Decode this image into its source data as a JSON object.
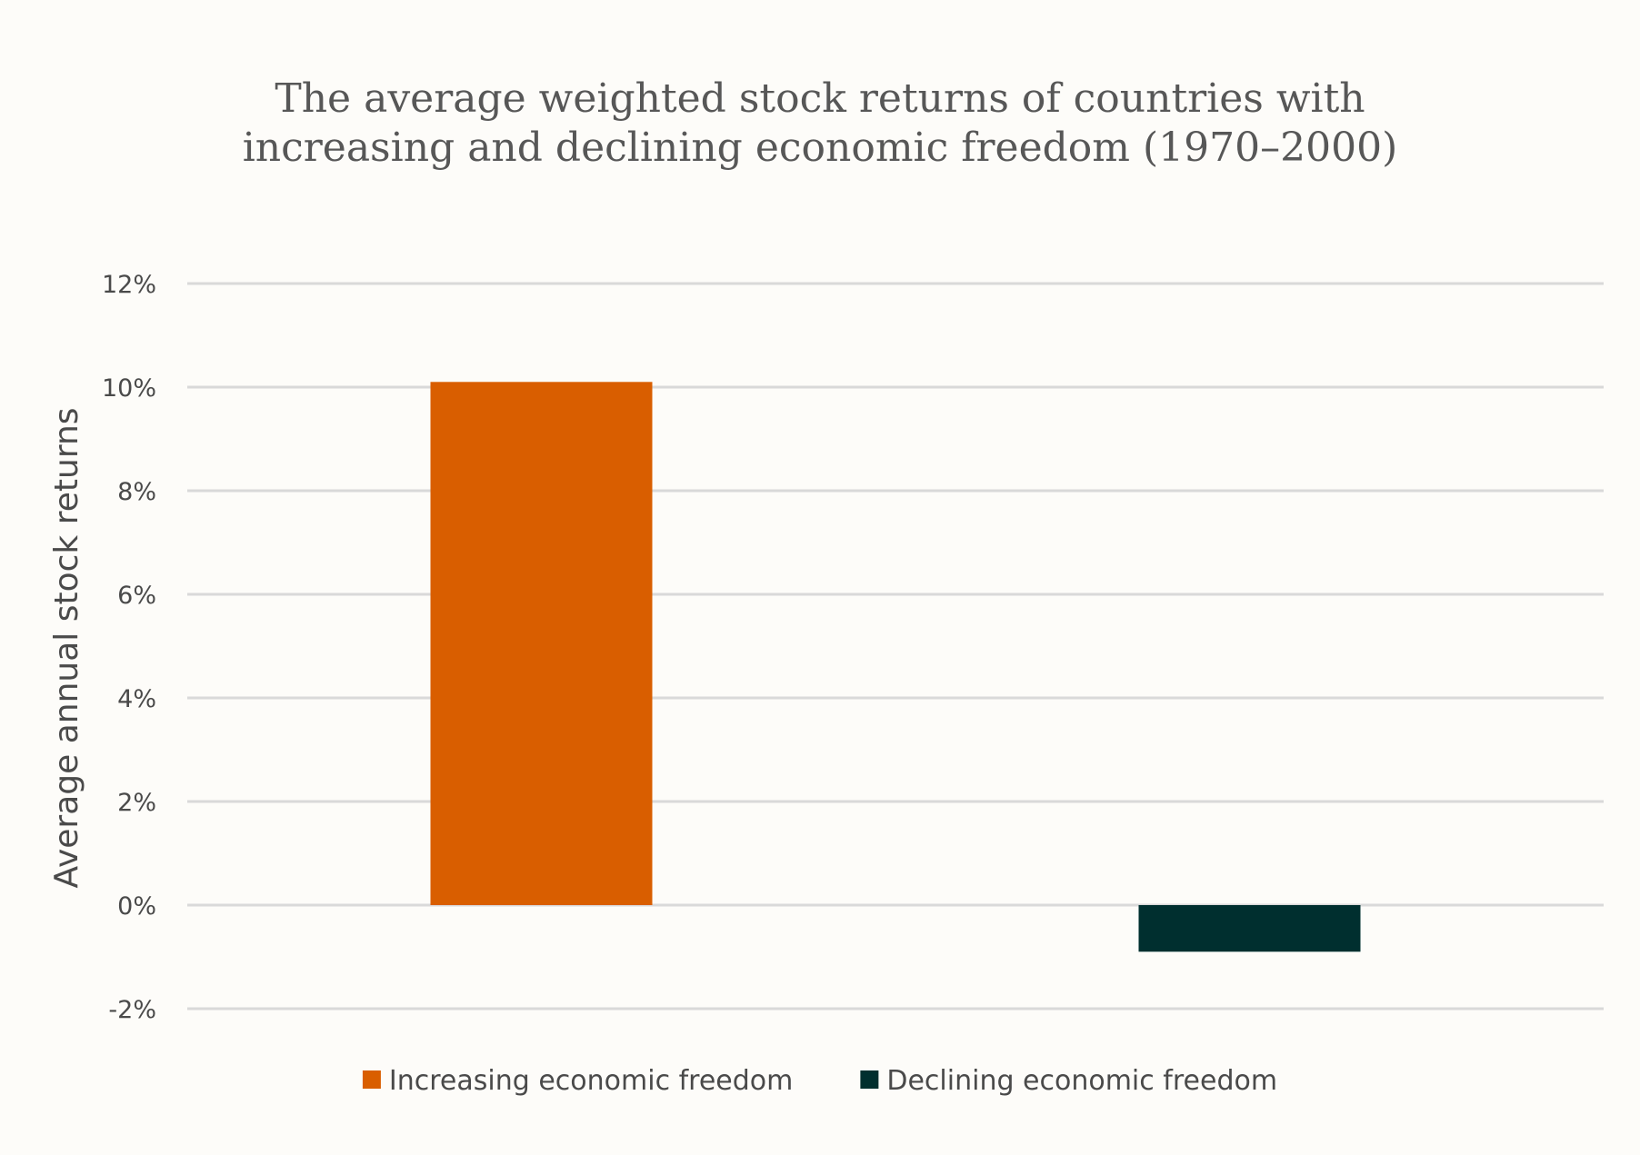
{
  "chart_data": {
    "type": "bar",
    "title_lines": [
      "The average weighted stock returns of countries with",
      "increasing and declining economic freedom (1970–2000)"
    ],
    "xlabel": "",
    "ylabel": "Average annual stock returns",
    "ylim": [
      -0.02,
      0.12
    ],
    "yticks": [
      {
        "value": -0.02,
        "label": "-2%"
      },
      {
        "value": 0.0,
        "label": "0%"
      },
      {
        "value": 0.02,
        "label": "2%"
      },
      {
        "value": 0.04,
        "label": "4%"
      },
      {
        "value": 0.06,
        "label": "6%"
      },
      {
        "value": 0.08,
        "label": "8%"
      },
      {
        "value": 0.1,
        "label": "10%"
      },
      {
        "value": 0.12,
        "label": "12%"
      }
    ],
    "grid": true,
    "legend_position": "bottom",
    "series": [
      {
        "name": "Increasing economic freedom",
        "value": 0.101,
        "color": "#d95e00"
      },
      {
        "name": "Declining economic freedom",
        "value": -0.009,
        "color": "#002f2f"
      }
    ]
  }
}
